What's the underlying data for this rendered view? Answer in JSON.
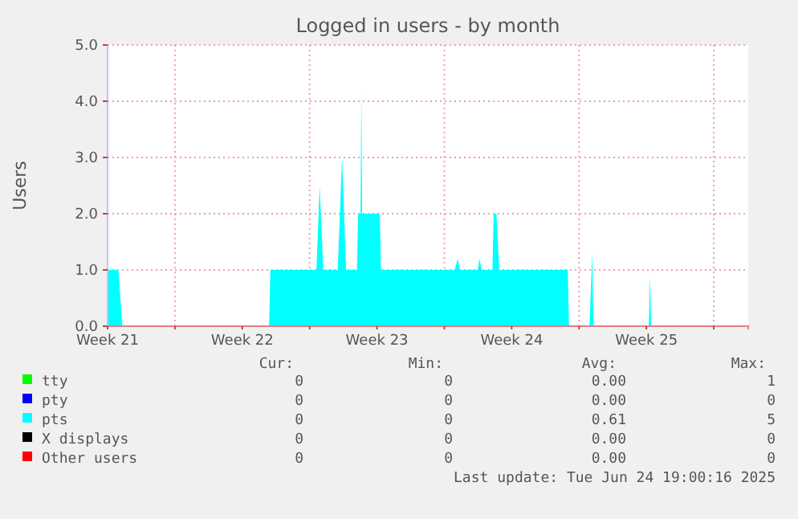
{
  "chart_data": {
    "type": "area",
    "title": "Logged in users - by month",
    "ylabel": "Users",
    "x": [
      "2025-05-22T12:00",
      "2025-05-23T01:30",
      "2025-05-23T06:30",
      "2025-05-30T21:30",
      "2025-05-30T23:00",
      "2025-06-02T08:30",
      "2025-06-02T12:30",
      "2025-06-02T17:00",
      "2025-06-03T11:00",
      "2025-06-03T16:30",
      "2025-06-03T21:30",
      "2025-06-04T11:00",
      "2025-06-04T12:30",
      "2025-06-04T15:30",
      "2025-06-04T16:30",
      "2025-06-04T17:30",
      "2025-06-05T15:30",
      "2025-06-05T17:00",
      "2025-06-09T13:00",
      "2025-06-09T16:30",
      "2025-06-09T19:30",
      "2025-06-10T17:30",
      "2025-06-10T20:00",
      "2025-06-10T22:30",
      "2025-06-11T12:00",
      "2025-06-11T13:30",
      "2025-06-11T17:00",
      "2025-06-11T20:30",
      "2025-06-15T10:00",
      "2025-06-15T11:30",
      "2025-06-16T13:00",
      "2025-06-16T16:30",
      "2025-06-16T18:00",
      "2025-06-19T15:00",
      "2025-06-19T16:30",
      "2025-06-19T18:00",
      "2025-06-24T19:00"
    ],
    "series": [
      {
        "name": "tty",
        "color": "#00ff00",
        "values": [
          null,
          null,
          null,
          null,
          null,
          null,
          null,
          null,
          null,
          null,
          null,
          null,
          null,
          null,
          null,
          null,
          null,
          null,
          null,
          null,
          null,
          null,
          null,
          null,
          null,
          null,
          null,
          null,
          null,
          null,
          null,
          null,
          null,
          null,
          null,
          null,
          null
        ]
      },
      {
        "name": "pty",
        "color": "#0000ff",
        "values": [
          null,
          null,
          null,
          null,
          null,
          null,
          null,
          null,
          null,
          null,
          null,
          null,
          null,
          null,
          null,
          null,
          null,
          null,
          null,
          null,
          null,
          null,
          null,
          null,
          null,
          null,
          null,
          null,
          null,
          null,
          null,
          null,
          null,
          null,
          null,
          null,
          null
        ]
      },
      {
        "name": "pts",
        "color": "#00ffff",
        "values": [
          1,
          1,
          0,
          0,
          1,
          1,
          2.5,
          1,
          1,
          3,
          1,
          1,
          2,
          2,
          4.2,
          2,
          2,
          1,
          1,
          1.2,
          1,
          1,
          1.2,
          1,
          1,
          2,
          2,
          1,
          1,
          0,
          0,
          1.3,
          0,
          0,
          0.9,
          0,
          0
        ]
      },
      {
        "name": "X displays",
        "color": "#000000",
        "values": [
          null,
          null,
          null,
          null,
          null,
          null,
          null,
          null,
          null,
          null,
          null,
          null,
          null,
          null,
          null,
          null,
          null,
          null,
          null,
          null,
          null,
          null,
          null,
          null,
          null,
          null,
          null,
          null,
          null,
          null,
          null,
          null,
          null,
          null,
          null,
          null,
          null
        ]
      },
      {
        "name": "Other users",
        "color": "#ff0000",
        "values": [
          null,
          null,
          null,
          null,
          null,
          null,
          null,
          null,
          null,
          null,
          null,
          null,
          null,
          null,
          null,
          null,
          null,
          null,
          null,
          null,
          null,
          null,
          null,
          null,
          null,
          null,
          null,
          null,
          null,
          null,
          null,
          null,
          null,
          null,
          null,
          null,
          null
        ]
      }
    ],
    "xlim": [
      "2025-05-22T12:00",
      "2025-06-24T19:00"
    ],
    "xticks": [
      {
        "value": "2025-05-22T12:00",
        "label": "Week 21"
      },
      {
        "value": "2025-05-26",
        "label": null
      },
      {
        "value": "2025-05-29T12:00",
        "label": "Week 22"
      },
      {
        "value": "2025-06-02",
        "label": null
      },
      {
        "value": "2025-06-05T12:00",
        "label": "Week 23"
      },
      {
        "value": "2025-06-09",
        "label": null
      },
      {
        "value": "2025-06-12T12:00",
        "label": "Week 24"
      },
      {
        "value": "2025-06-16",
        "label": null
      },
      {
        "value": "2025-06-19T12:00",
        "label": "Week 25"
      },
      {
        "value": "2025-06-23",
        "label": null
      }
    ],
    "ylim": [
      0,
      5
    ],
    "yticks": [
      {
        "value": 0,
        "label": "0.0"
      },
      {
        "value": 1,
        "label": "1.0"
      },
      {
        "value": 2,
        "label": "2.0"
      },
      {
        "value": 3,
        "label": "3.0"
      },
      {
        "value": 4,
        "label": "4.0"
      },
      {
        "value": 5,
        "label": "5.0"
      }
    ],
    "grid": true,
    "legend": "bottom",
    "annotations": [
      "Cur:",
      "Min:",
      "Avg:",
      "Max:",
      "0",
      "0",
      "0.00",
      "1",
      "0",
      "0",
      "0.00",
      "0",
      "0",
      "0",
      "0.61",
      "5",
      "0",
      "0",
      "0.00",
      "0",
      "0",
      "0",
      "0.00",
      "0",
      "Last update: Tue Jun 24 19:00:16 2025"
    ]
  }
}
